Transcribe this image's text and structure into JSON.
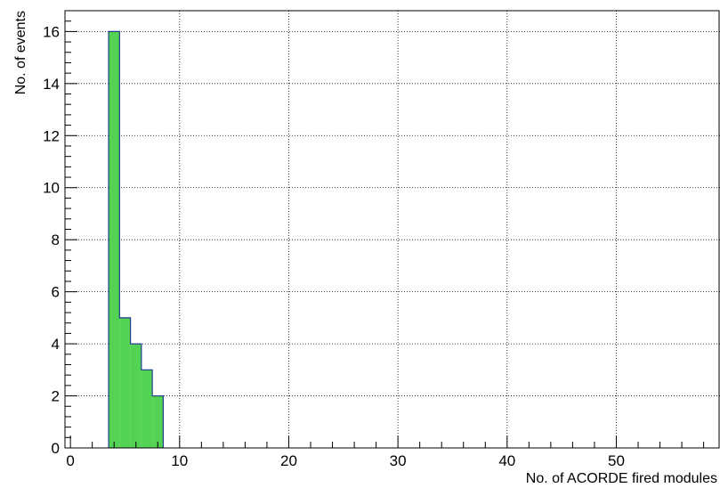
{
  "chart_data": {
    "type": "bar",
    "histogram": true,
    "xlabel": "No. of ACORDE fired modules",
    "ylabel": "No. of events",
    "xlim": [
      -0.5,
      59.5
    ],
    "ylim": [
      0,
      16.8
    ],
    "grid": true,
    "x_ticks": [
      0,
      10,
      20,
      30,
      40,
      50
    ],
    "y_ticks": [
      0,
      2,
      4,
      6,
      8,
      10,
      12,
      14,
      16
    ],
    "bins": [
      {
        "x": 4,
        "value": 16
      },
      {
        "x": 5,
        "value": 5
      },
      {
        "x": 6,
        "value": 4
      },
      {
        "x": 7,
        "value": 3
      },
      {
        "x": 8,
        "value": 2
      }
    ],
    "bin_width": 1,
    "fill_color": "#53d253",
    "line_color": "#1f3f8f"
  }
}
